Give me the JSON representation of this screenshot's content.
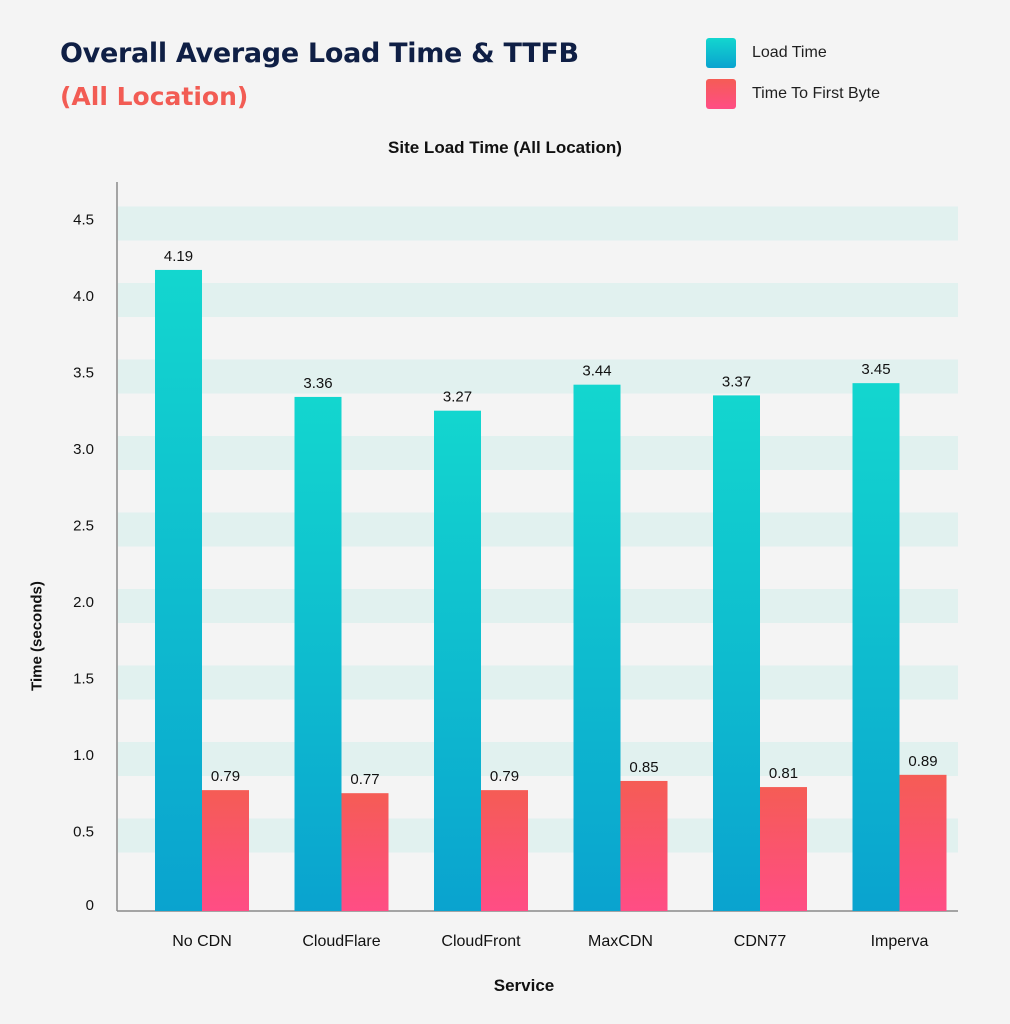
{
  "chart_data": {
    "type": "bar",
    "title": "Overall Average Load Time & TTFB",
    "subtitle": "(All Location)",
    "chart_title": "Site Load Time (All Location)",
    "xlabel": "Service",
    "ylabel": "Time (seconds)",
    "categories": [
      "No CDN",
      "CloudFlare",
      "CloudFront",
      "MaxCDN",
      "CDN77",
      "Imperva"
    ],
    "series": [
      {
        "name": "Load Time",
        "values": [
          4.19,
          3.36,
          3.27,
          3.44,
          3.37,
          3.45
        ],
        "color": "#13d6cf",
        "color_bottom": "#0aa3cf"
      },
      {
        "name": "Time To First Byte",
        "values": [
          0.79,
          0.77,
          0.79,
          0.85,
          0.81,
          0.89
        ],
        "color": "#f55c55",
        "color_bottom": "#ff4d85"
      }
    ],
    "yticks": [
      "0",
      "0.5",
      "1.0",
      "1.5",
      "2.0",
      "2.5",
      "3.0",
      "3.5",
      "4.0",
      "4.5"
    ],
    "ylim": [
      0,
      4.7
    ],
    "grid": "horizontal bands",
    "legend_position": "top-right",
    "band_color": "#e1f1ef"
  }
}
